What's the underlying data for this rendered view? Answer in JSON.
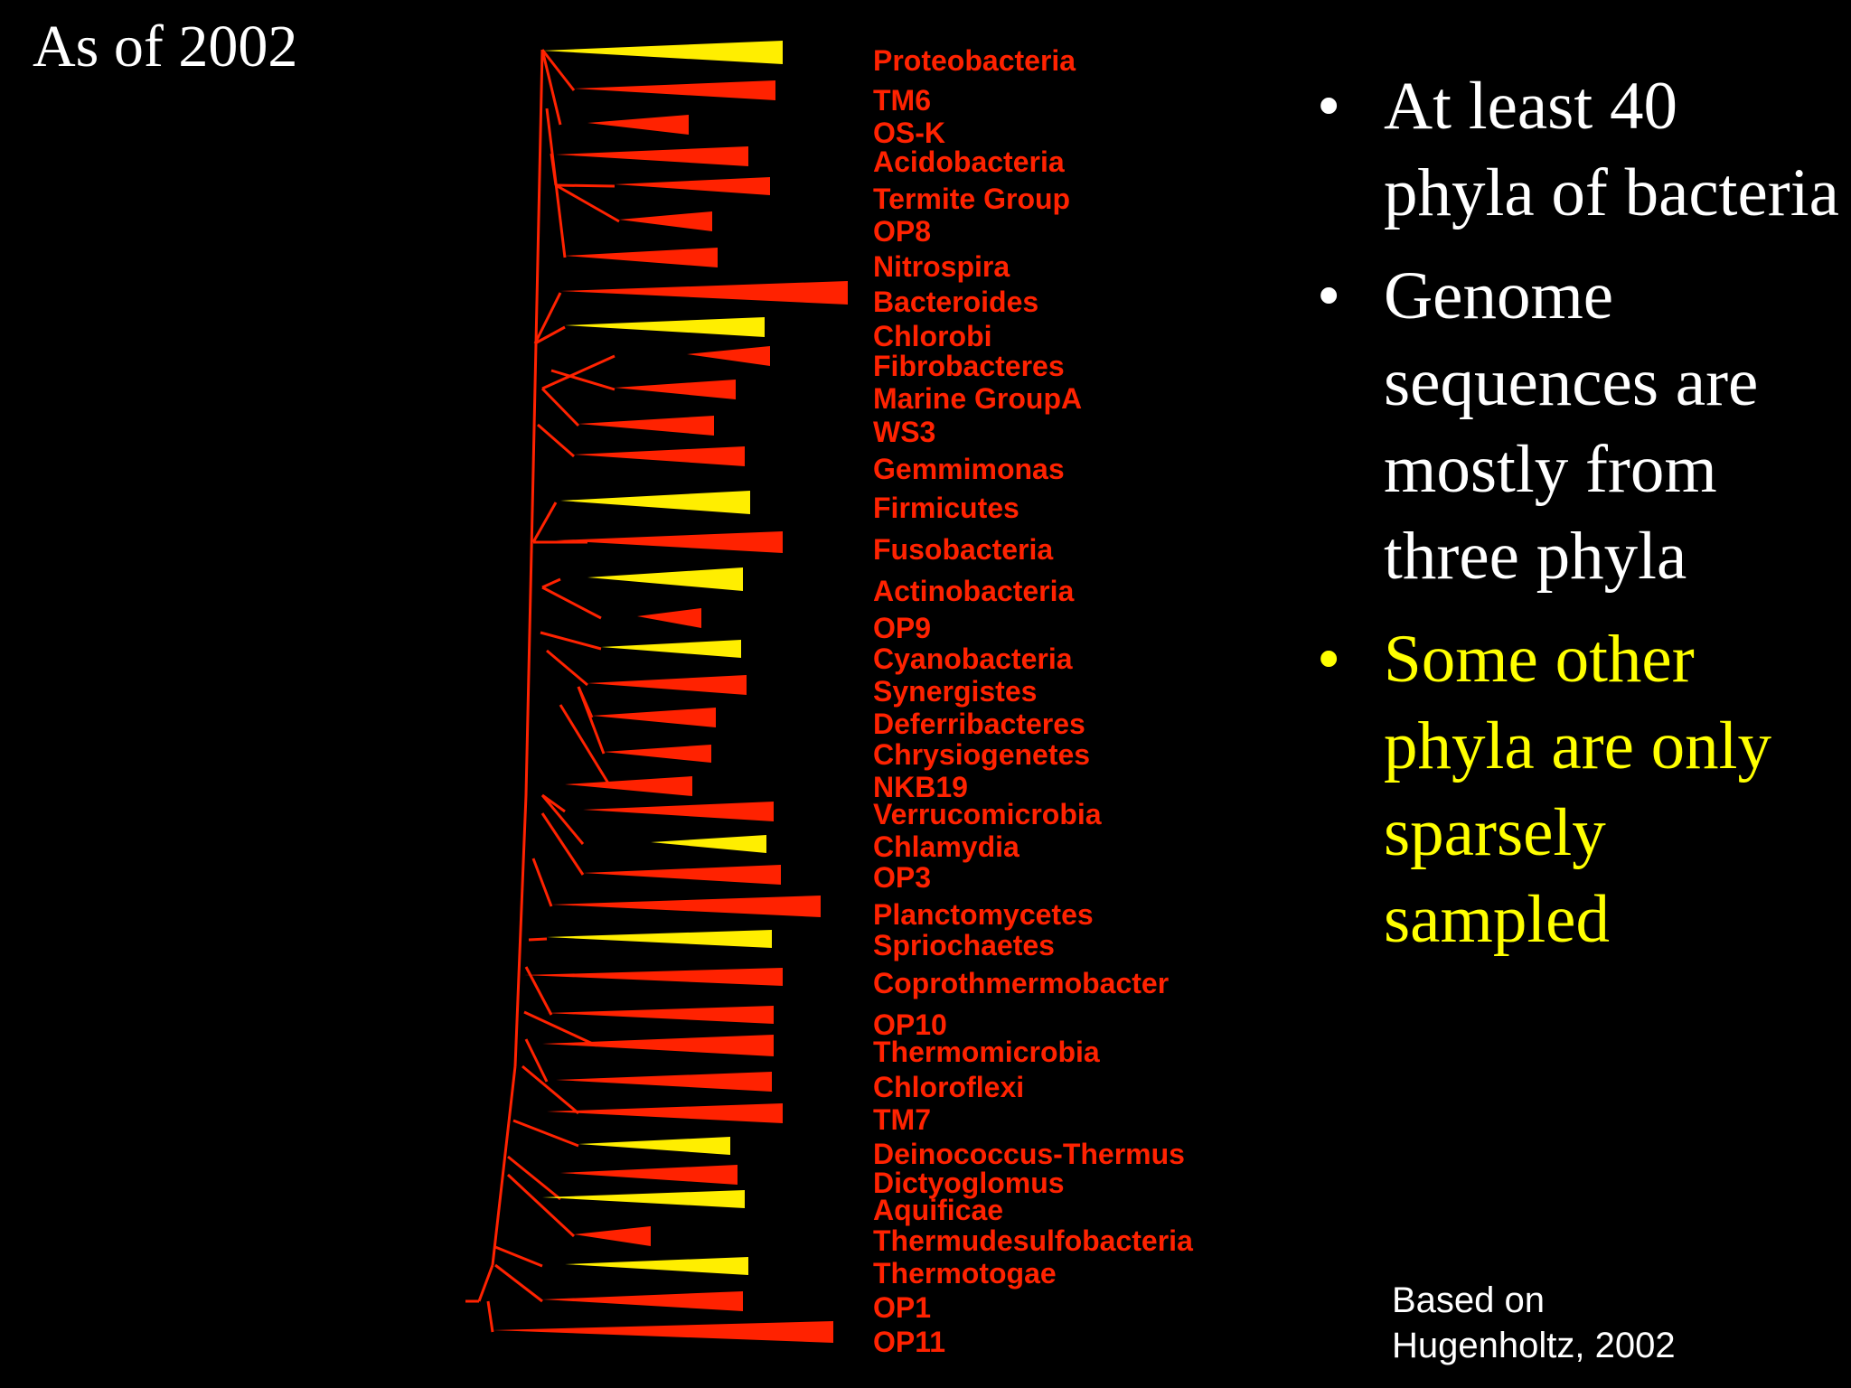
{
  "title": "As of 2002",
  "colors": {
    "background": "#000000",
    "branch": "#ff2200",
    "sampled_wedge": "#ffee00",
    "other_wedge": "#ff2200",
    "text": "#ffffff",
    "highlight_text": "#ffff00"
  },
  "tree": {
    "phyla": [
      {
        "name": "Proteobacteria",
        "highlight": true
      },
      {
        "name": "TM6",
        "highlight": false
      },
      {
        "name": "OS-K",
        "highlight": false
      },
      {
        "name": "Acidobacteria",
        "highlight": false
      },
      {
        "name": "Termite Group",
        "highlight": false
      },
      {
        "name": "OP8",
        "highlight": false
      },
      {
        "name": "Nitrospira",
        "highlight": false
      },
      {
        "name": "Bacteroides",
        "highlight": false
      },
      {
        "name": "Chlorobi",
        "highlight": true
      },
      {
        "name": "Fibrobacteres",
        "highlight": false
      },
      {
        "name": "Marine GroupA",
        "highlight": false
      },
      {
        "name": "WS3",
        "highlight": false
      },
      {
        "name": "Gemmimonas",
        "highlight": false
      },
      {
        "name": "Firmicutes",
        "highlight": true
      },
      {
        "name": "Fusobacteria",
        "highlight": false
      },
      {
        "name": "Actinobacteria",
        "highlight": true
      },
      {
        "name": "OP9",
        "highlight": false
      },
      {
        "name": "Cyanobacteria",
        "highlight": true
      },
      {
        "name": "Synergistes",
        "highlight": false
      },
      {
        "name": "Deferribacteres",
        "highlight": false
      },
      {
        "name": "Chrysiogenetes",
        "highlight": false
      },
      {
        "name": "NKB19",
        "highlight": false
      },
      {
        "name": "Verrucomicrobia",
        "highlight": false
      },
      {
        "name": "Chlamydia",
        "highlight": true
      },
      {
        "name": "OP3",
        "highlight": false
      },
      {
        "name": "Planctomycetes",
        "highlight": false
      },
      {
        "name": "Spriochaetes",
        "highlight": true
      },
      {
        "name": "Coprothmermobacter",
        "highlight": false
      },
      {
        "name": "OP10",
        "highlight": false
      },
      {
        "name": "Thermomicrobia",
        "highlight": false
      },
      {
        "name": "Chloroflexi",
        "highlight": false
      },
      {
        "name": "TM7",
        "highlight": false
      },
      {
        "name": "Deinococcus-Thermus",
        "highlight": true
      },
      {
        "name": "Dictyoglomus",
        "highlight": false
      },
      {
        "name": "Aquificae",
        "highlight": true
      },
      {
        "name": "Thermudesulfobacteria",
        "highlight": false
      },
      {
        "name": "Thermotogae",
        "highlight": true
      },
      {
        "name": "OP1",
        "highlight": false
      },
      {
        "name": "OP11",
        "highlight": false
      }
    ]
  },
  "bullets": [
    {
      "text": "At least 40 phyla of bacteria",
      "highlight": false
    },
    {
      "text": "Genome sequences are mostly from three phyla",
      "highlight": false
    },
    {
      "text": "Some other phyla are only sparsely sampled",
      "highlight": true
    }
  ],
  "bullet_symbol": "•",
  "citation": {
    "line1": "Based on",
    "line2": "Hugenholtz, 2002"
  }
}
